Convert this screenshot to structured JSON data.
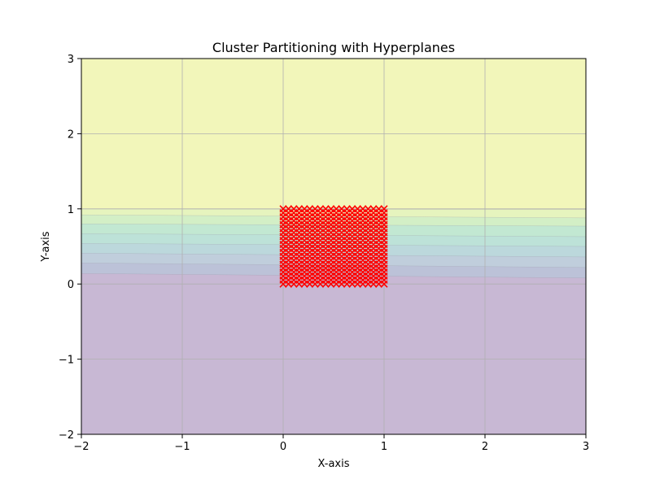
{
  "chart_data": {
    "type": "scatter",
    "title": "Cluster Partitioning with Hyperplanes",
    "xlabel": "X-axis",
    "ylabel": "Y-axis",
    "xlim": [
      -2,
      3
    ],
    "ylim": [
      -2,
      3
    ],
    "xticks": [
      -2,
      -1,
      0,
      1,
      2,
      3
    ],
    "yticks": [
      -2,
      -1,
      0,
      1,
      2,
      3
    ],
    "xtick_labels": [
      "−2",
      "−1",
      "0",
      "1",
      "2",
      "3"
    ],
    "ytick_labels": [
      "−2",
      "−1",
      "0",
      "1",
      "2",
      "3"
    ],
    "grid": true,
    "marker": "x",
    "marker_color": "#ff0000",
    "points_grid": {
      "x_start": 0,
      "x_end": 1,
      "x_count": 20,
      "y_start": 0,
      "y_end": 1,
      "y_count": 20
    },
    "decision_regions": [
      {
        "y_left": -2.0,
        "y_right": -2.0,
        "color": "#c8b8d4"
      },
      {
        "y_left": 0.14,
        "y_right": 0.08,
        "color": "#bcc2d8"
      },
      {
        "y_left": 0.28,
        "y_right": 0.22,
        "color": "#c0cedc"
      },
      {
        "y_left": 0.41,
        "y_right": 0.36,
        "color": "#bcd8dc"
      },
      {
        "y_left": 0.54,
        "y_right": 0.5,
        "color": "#bde2d8"
      },
      {
        "y_left": 0.67,
        "y_right": 0.63,
        "color": "#c2e8d2"
      },
      {
        "y_left": 0.8,
        "y_right": 0.77,
        "color": "#d3efc6"
      },
      {
        "y_left": 0.92,
        "y_right": 0.88,
        "color": "#e6f4be"
      },
      {
        "y_left": 1.0,
        "y_right": 0.99,
        "color": "#f2f6ba"
      }
    ]
  }
}
